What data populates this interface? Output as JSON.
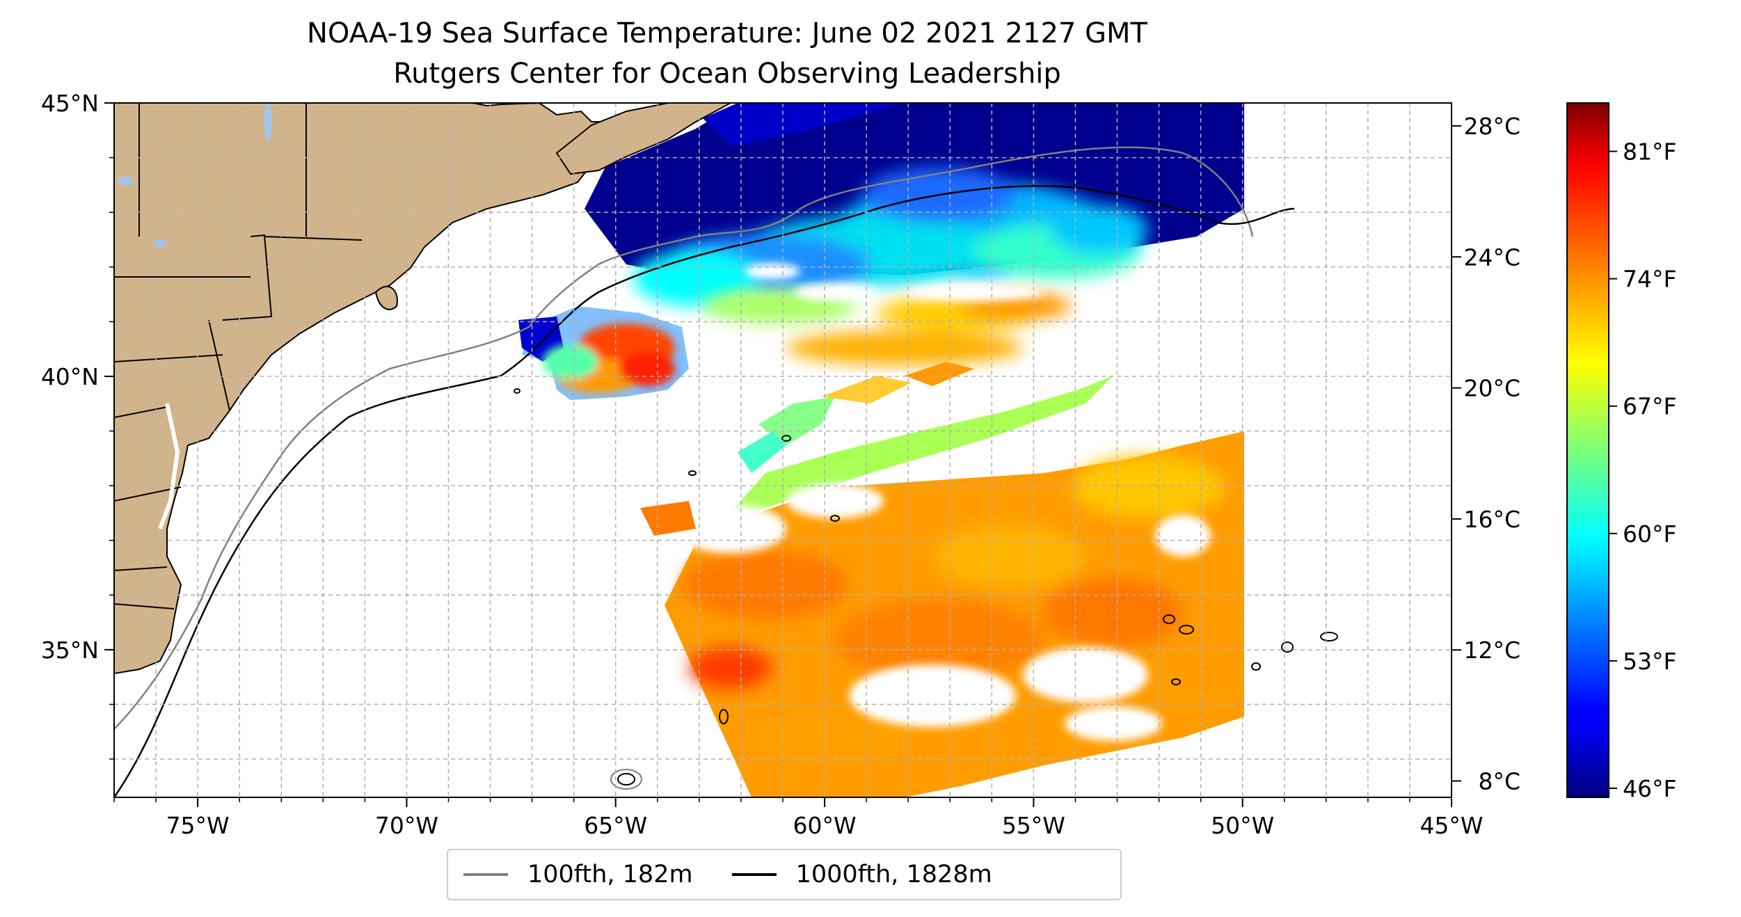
{
  "title": {
    "line1": "NOAA-19 Sea Surface Temperature: June 02 2021 2127 GMT",
    "line2": "Rutgers Center for Ocean Observing Leadership"
  },
  "map": {
    "extent": {
      "lon_min": -77,
      "lon_max": -45,
      "lat_min": 32.3,
      "lat_max": 45
    },
    "x_ticks": [
      {
        "lon": -75,
        "label": "75°W"
      },
      {
        "lon": -70,
        "label": "70°W"
      },
      {
        "lon": -65,
        "label": "65°W"
      },
      {
        "lon": -60,
        "label": "60°W"
      },
      {
        "lon": -55,
        "label": "55°W"
      },
      {
        "lon": -50,
        "label": "50°W"
      },
      {
        "lon": -45,
        "label": "45°W"
      }
    ],
    "y_ticks": [
      {
        "lat": 45,
        "label": "45°N"
      },
      {
        "lat": 40,
        "label": "40°N"
      },
      {
        "lat": 35,
        "label": "35°N"
      }
    ],
    "gridlines": "dashed",
    "colors": {
      "land": "#d2b48c",
      "lakes": "#a6c4ea",
      "isobath_100fth": "#808080",
      "isobath_1000fth": "#000000"
    }
  },
  "legend": {
    "placement": "bottom-center",
    "items": [
      {
        "label": "100fth, 182m",
        "color": "#808080"
      },
      {
        "label": "1000fth, 1828m",
        "color": "#000000"
      }
    ]
  },
  "colorbar": {
    "colormap": "jet",
    "min_c": 7.5,
    "max_c": 28.7,
    "celsius_ticks": [
      {
        "value": 8,
        "label": "8°C"
      },
      {
        "value": 12,
        "label": "12°C"
      },
      {
        "value": 16,
        "label": "16°C"
      },
      {
        "value": 20,
        "label": "20°C"
      },
      {
        "value": 24,
        "label": "24°C"
      },
      {
        "value": 28,
        "label": "28°C"
      }
    ],
    "fahrenheit_ticks": [
      {
        "value": 46,
        "label": "46°F"
      },
      {
        "value": 53,
        "label": "53°F"
      },
      {
        "value": 60,
        "label": "60°F"
      },
      {
        "value": 67,
        "label": "67°F"
      },
      {
        "value": 74,
        "label": "74°F"
      },
      {
        "value": 81,
        "label": "81°F"
      }
    ]
  }
}
